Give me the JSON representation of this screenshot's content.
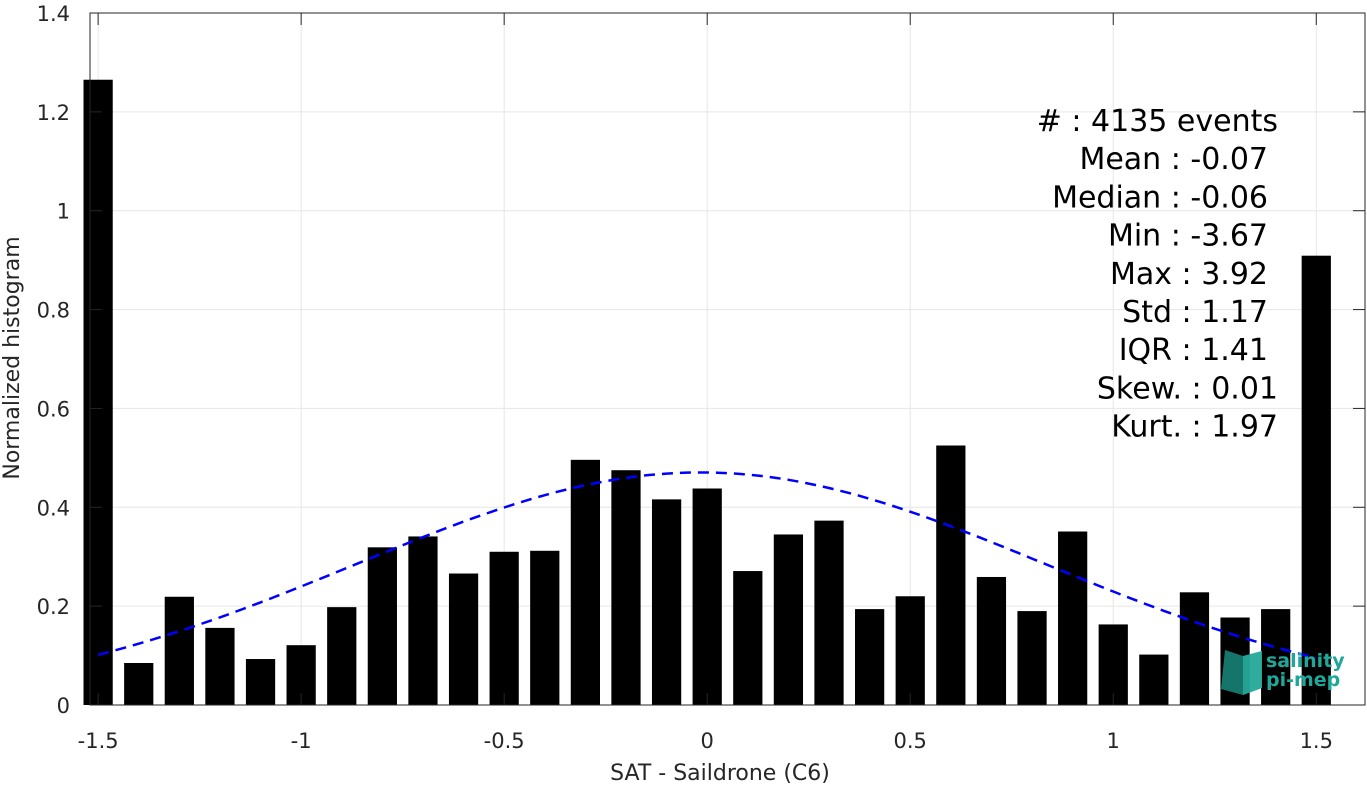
{
  "chart_data": {
    "type": "bar",
    "xlabel": "SAT - Saildrone (C6)",
    "ylabel": "Normalized histogram",
    "xlim": [
      -1.52,
      1.62
    ],
    "ylim": [
      0,
      1.4
    ],
    "xticks": [
      -1.5,
      -1,
      -0.5,
      0,
      0.5,
      1,
      1.5
    ],
    "xtick_labels": [
      "-1.5",
      "-1",
      "-0.5",
      "0",
      "0.5",
      "1",
      "1.5"
    ],
    "yticks": [
      0,
      0.2,
      0.4,
      0.6,
      0.8,
      1,
      1.2,
      1.4
    ],
    "ytick_labels": [
      "0",
      "0.2",
      "0.4",
      "0.6",
      "0.8",
      "1",
      "1.2",
      "1.4"
    ],
    "grid": true,
    "bar_width": 0.072,
    "bar_color": "#000000",
    "bars": [
      {
        "x": -1.5,
        "value": 1.265
      },
      {
        "x": -1.4,
        "value": 0.085
      },
      {
        "x": -1.3,
        "value": 0.219
      },
      {
        "x": -1.2,
        "value": 0.156
      },
      {
        "x": -1.1,
        "value": 0.093
      },
      {
        "x": -1.0,
        "value": 0.121
      },
      {
        "x": -0.9,
        "value": 0.198
      },
      {
        "x": -0.8,
        "value": 0.319
      },
      {
        "x": -0.7,
        "value": 0.341
      },
      {
        "x": -0.6,
        "value": 0.266
      },
      {
        "x": -0.5,
        "value": 0.31
      },
      {
        "x": -0.4,
        "value": 0.312
      },
      {
        "x": -0.3,
        "value": 0.496
      },
      {
        "x": -0.2,
        "value": 0.475
      },
      {
        "x": -0.1,
        "value": 0.416
      },
      {
        "x": 0.0,
        "value": 0.438
      },
      {
        "x": 0.1,
        "value": 0.271
      },
      {
        "x": 0.2,
        "value": 0.345
      },
      {
        "x": 0.3,
        "value": 0.373
      },
      {
        "x": 0.4,
        "value": 0.194
      },
      {
        "x": 0.5,
        "value": 0.22
      },
      {
        "x": 0.6,
        "value": 0.525
      },
      {
        "x": 0.7,
        "value": 0.259
      },
      {
        "x": 0.8,
        "value": 0.19
      },
      {
        "x": 0.9,
        "value": 0.351
      },
      {
        "x": 1.0,
        "value": 0.163
      },
      {
        "x": 1.1,
        "value": 0.102
      },
      {
        "x": 1.2,
        "value": 0.228
      },
      {
        "x": 1.3,
        "value": 0.177
      },
      {
        "x": 1.4,
        "value": 0.194
      },
      {
        "x": 1.5,
        "value": 0.909
      }
    ],
    "fit_curve": {
      "style": "dashed",
      "color": "#0000ff",
      "mean": -0.0155,
      "peak": 0.4705,
      "sigma": 0.8478,
      "x_range": [
        -1.5,
        1.5
      ]
    },
    "stats": [
      "#  : 4135 events",
      "Mean : -0.07",
      "Median : -0.06",
      "Min : -3.67",
      "Max : 3.92",
      "Std : 1.17",
      "IQR : 1.41",
      "Skew. : 0.01",
      "Kurt. : 1.97"
    ]
  },
  "logo": {
    "name": "salinity-pi-mep-logo",
    "line1": "salinity",
    "line2": "pi-mep",
    "color": "#1fa89a"
  }
}
